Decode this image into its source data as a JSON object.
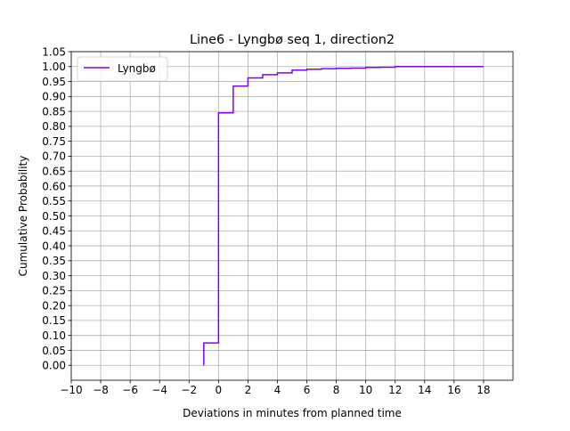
{
  "chart_data": {
    "type": "line",
    "drawstyle": "step",
    "title": "Line6 - Lyngbø seq 1, direction2",
    "xlabel": "Deviations in minutes from planned time",
    "ylabel": "Cumulative Probability",
    "xlim": [
      -10,
      20
    ],
    "ylim": [
      -0.05,
      1.05
    ],
    "xticks": [
      -10,
      -8,
      -6,
      -4,
      -2,
      0,
      2,
      4,
      6,
      8,
      10,
      12,
      14,
      16,
      18
    ],
    "xtick_labels": [
      "−10",
      "−8",
      "−6",
      "−4",
      "−2",
      "0",
      "2",
      "4",
      "6",
      "8",
      "10",
      "12",
      "14",
      "16",
      "18"
    ],
    "yticks": [
      0,
      0.05,
      0.1,
      0.15,
      0.2,
      0.25,
      0.3,
      0.35,
      0.4,
      0.45,
      0.5,
      0.55,
      0.6,
      0.65,
      0.7,
      0.75,
      0.8,
      0.85,
      0.9,
      0.95,
      1.0,
      1.05
    ],
    "ytick_labels": [
      "0.00",
      "0.05",
      "0.10",
      "0.15",
      "0.20",
      "0.25",
      "0.30",
      "0.35",
      "0.40",
      "0.45",
      "0.50",
      "0.55",
      "0.60",
      "0.65",
      "0.70",
      "0.75",
      "0.80",
      "0.85",
      "0.90",
      "0.95",
      "1.00",
      "1.05"
    ],
    "grid": true,
    "legend_position": "top-left",
    "series": [
      {
        "name": "Lyngbø",
        "color": "#8000ff",
        "x": [
          -1,
          -1,
          0,
          0,
          1,
          1,
          2,
          2,
          3,
          3,
          4,
          4,
          5,
          5,
          6,
          6,
          7,
          7,
          8,
          8,
          9,
          9,
          10,
          10,
          11,
          11,
          12,
          12,
          18
        ],
        "y": [
          0.0,
          0.075,
          0.075,
          0.845,
          0.845,
          0.935,
          0.935,
          0.962,
          0.962,
          0.973,
          0.973,
          0.979,
          0.979,
          0.988,
          0.988,
          0.991,
          0.991,
          0.993,
          0.993,
          0.994,
          0.994,
          0.995,
          0.995,
          0.997,
          0.997,
          0.998,
          0.998,
          1.0,
          1.0
        ]
      }
    ]
  }
}
